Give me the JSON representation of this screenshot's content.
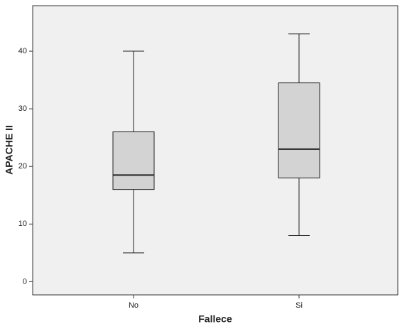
{
  "chart_data": {
    "type": "box",
    "x_label": "Fallece",
    "y_label": "APACHE II",
    "categories": [
      "No",
      "Si"
    ],
    "boxes": [
      {
        "min": 5,
        "q1": 16,
        "median": 18.5,
        "q3": 26,
        "max": 40
      },
      {
        "min": 8,
        "q1": 18,
        "median": 23,
        "q3": 34.5,
        "max": 43
      }
    ],
    "color": "#d3d3d3",
    "ylim": [
      -2.3,
      47.9
    ],
    "yticks": [
      0,
      10,
      20,
      30,
      40
    ]
  }
}
